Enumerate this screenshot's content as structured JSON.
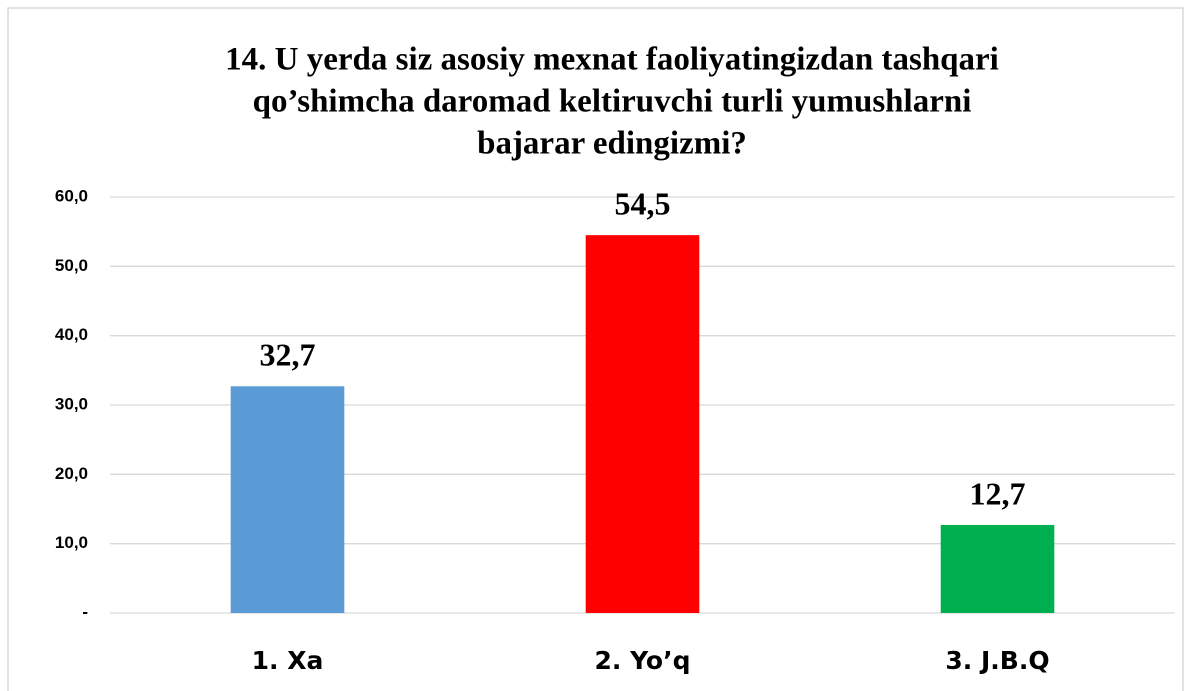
{
  "chart_data": {
    "type": "bar",
    "title": [
      "14. U yerda siz asosiy mexnat faoliyatingizdan tashqari",
      "qo’shimcha daromad keltiruvchi turli  yumushlarni",
      "bajarar edingizmi?"
    ],
    "categories": [
      "1. Xa",
      "2. Yo’q",
      "3. J.B.Q"
    ],
    "values": [
      32.7,
      54.5,
      12.7
    ],
    "value_labels": [
      "32,7",
      "54,5",
      "12,7"
    ],
    "colors": [
      "#5b9bd5",
      "#ff0000",
      "#00b050"
    ],
    "ylim": [
      0,
      60
    ],
    "yticks": [
      {
        "value": 0,
        "label": "-"
      },
      {
        "value": 10,
        "label": "10,0"
      },
      {
        "value": 20,
        "label": "20,0"
      },
      {
        "value": 30,
        "label": "30,0"
      },
      {
        "value": 40,
        "label": "40,0"
      },
      {
        "value": 50,
        "label": "50,0"
      },
      {
        "value": 60,
        "label": "60,0"
      }
    ],
    "grid": true
  }
}
